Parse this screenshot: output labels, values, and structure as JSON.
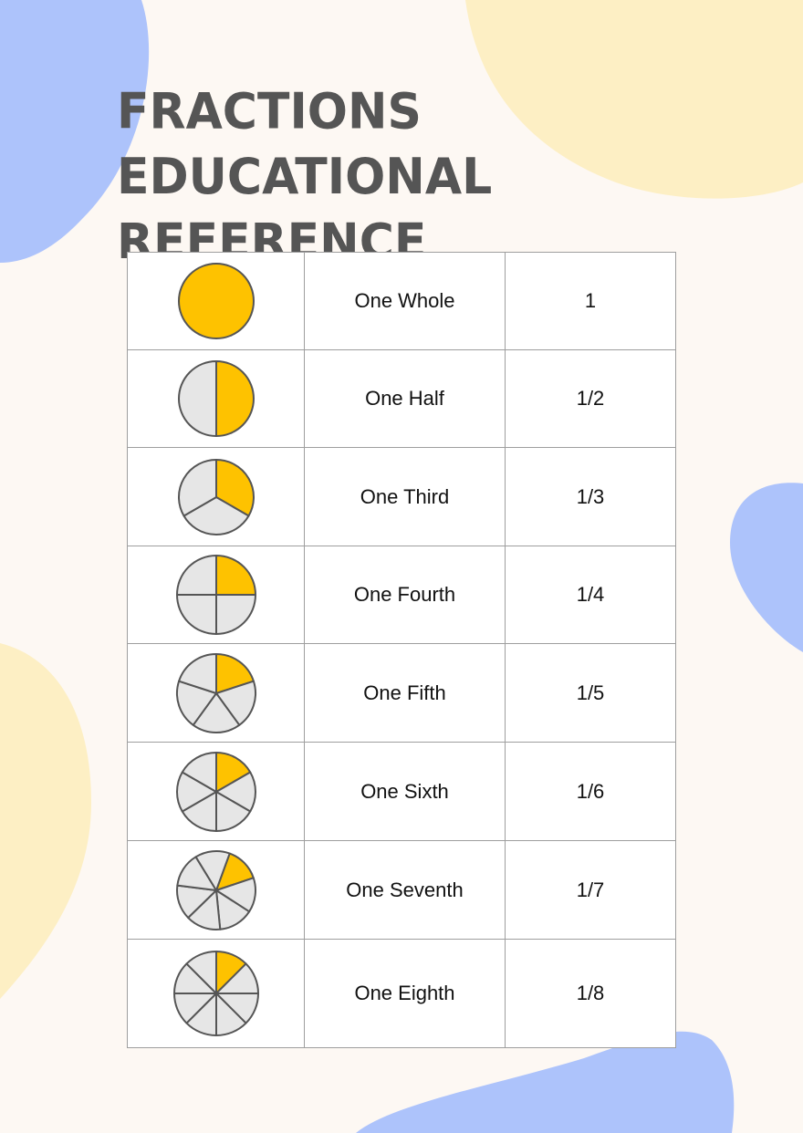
{
  "title": "Fractions Educational Reference",
  "colors": {
    "background": "#fdf8f3",
    "blob_blue": "#adc3fb",
    "blob_yellow": "#fdefc4",
    "filled": "#fec200",
    "unfilled": "#e6e6e6",
    "outline": "#555555"
  },
  "rows": [
    {
      "name": "One Whole",
      "fraction": "1",
      "parts": 1
    },
    {
      "name": "One Half",
      "fraction": "1/2",
      "parts": 2
    },
    {
      "name": "One Third",
      "fraction": "1/3",
      "parts": 3
    },
    {
      "name": "One Fourth",
      "fraction": "1/4",
      "parts": 4
    },
    {
      "name": "One Fifth",
      "fraction": "1/5",
      "parts": 5
    },
    {
      "name": "One Sixth",
      "fraction": "1/6",
      "parts": 6
    },
    {
      "name": "One Seventh",
      "fraction": "1/7",
      "parts": 7
    },
    {
      "name": "One Eighth",
      "fraction": "1/8",
      "parts": 8
    }
  ]
}
